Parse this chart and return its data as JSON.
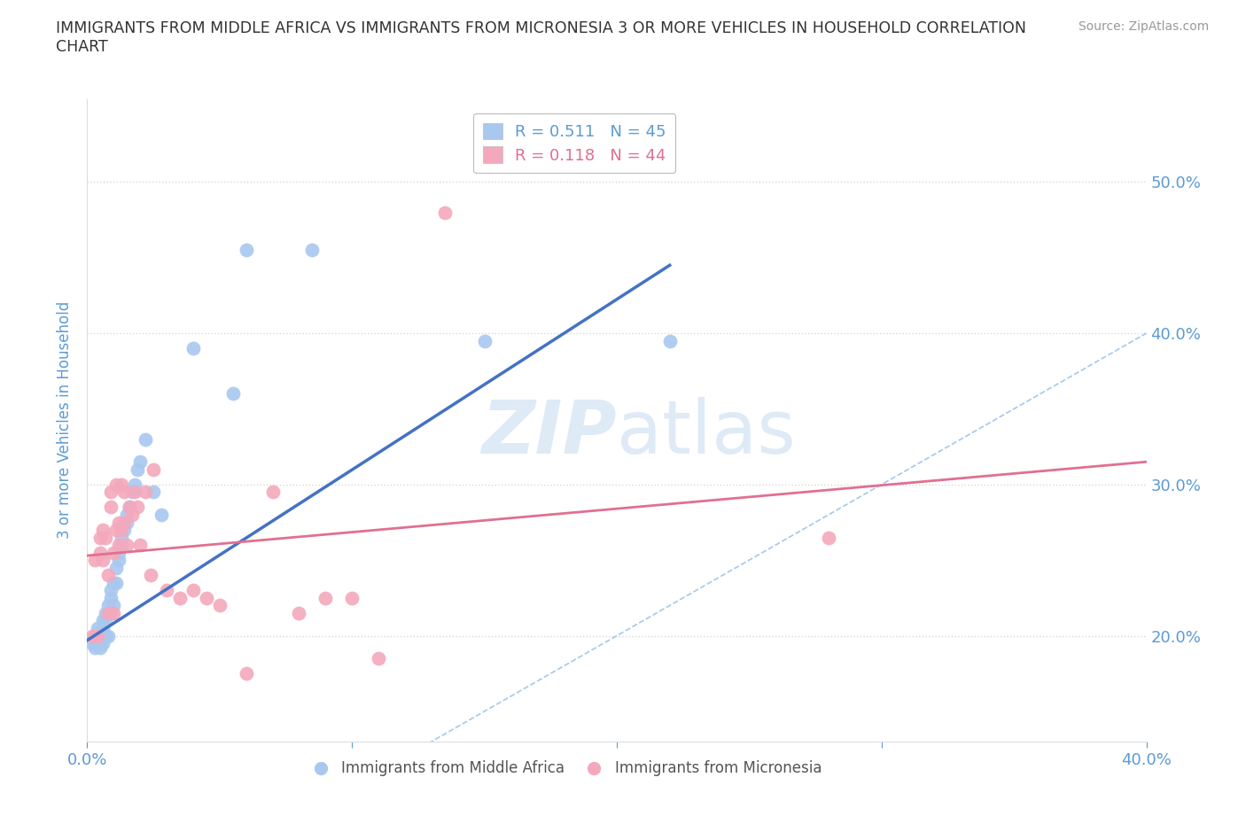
{
  "title": "IMMIGRANTS FROM MIDDLE AFRICA VS IMMIGRANTS FROM MICRONESIA 3 OR MORE VEHICLES IN HOUSEHOLD CORRELATION\nCHART",
  "source_text": "Source: ZipAtlas.com",
  "ylabel": "3 or more Vehicles in Household",
  "xmin": 0.0,
  "xmax": 0.4,
  "ymin": 0.13,
  "ymax": 0.555,
  "R_blue": 0.511,
  "N_blue": 45,
  "R_pink": 0.118,
  "N_pink": 44,
  "color_blue": "#A8C8F0",
  "color_pink": "#F4A8BC",
  "trendline_blue": "#4472C4",
  "trendline_pink": "#E07090",
  "refline_color": "#7EB0E8",
  "axis_color": "#5B9BD5",
  "grid_color": "#CCCCCC",
  "watermark_color": "#C8DCF0",
  "blue_scatter_x": [
    0.002,
    0.003,
    0.003,
    0.004,
    0.004,
    0.005,
    0.005,
    0.005,
    0.006,
    0.006,
    0.006,
    0.007,
    0.007,
    0.007,
    0.008,
    0.008,
    0.008,
    0.009,
    0.009,
    0.009,
    0.01,
    0.01,
    0.011,
    0.011,
    0.012,
    0.012,
    0.013,
    0.013,
    0.014,
    0.015,
    0.015,
    0.016,
    0.017,
    0.018,
    0.019,
    0.02,
    0.022,
    0.025,
    0.028,
    0.04,
    0.055,
    0.06,
    0.085,
    0.15,
    0.22
  ],
  "blue_scatter_y": [
    0.195,
    0.192,
    0.2,
    0.195,
    0.205,
    0.192,
    0.198,
    0.2,
    0.195,
    0.205,
    0.21,
    0.2,
    0.21,
    0.215,
    0.2,
    0.215,
    0.22,
    0.215,
    0.225,
    0.23,
    0.22,
    0.235,
    0.235,
    0.245,
    0.25,
    0.255,
    0.26,
    0.265,
    0.27,
    0.275,
    0.28,
    0.285,
    0.295,
    0.3,
    0.31,
    0.315,
    0.33,
    0.295,
    0.28,
    0.39,
    0.36,
    0.455,
    0.455,
    0.395,
    0.395
  ],
  "pink_scatter_x": [
    0.002,
    0.003,
    0.004,
    0.005,
    0.005,
    0.006,
    0.006,
    0.007,
    0.008,
    0.008,
    0.009,
    0.009,
    0.01,
    0.01,
    0.011,
    0.011,
    0.012,
    0.012,
    0.013,
    0.013,
    0.014,
    0.014,
    0.015,
    0.016,
    0.017,
    0.018,
    0.019,
    0.02,
    0.022,
    0.024,
    0.025,
    0.03,
    0.035,
    0.04,
    0.045,
    0.05,
    0.06,
    0.07,
    0.08,
    0.09,
    0.1,
    0.11,
    0.135,
    0.28
  ],
  "pink_scatter_y": [
    0.2,
    0.25,
    0.2,
    0.255,
    0.265,
    0.25,
    0.27,
    0.265,
    0.215,
    0.24,
    0.285,
    0.295,
    0.215,
    0.255,
    0.27,
    0.3,
    0.26,
    0.275,
    0.3,
    0.27,
    0.275,
    0.295,
    0.26,
    0.285,
    0.28,
    0.295,
    0.285,
    0.26,
    0.295,
    0.24,
    0.31,
    0.23,
    0.225,
    0.23,
    0.225,
    0.22,
    0.175,
    0.295,
    0.215,
    0.225,
    0.225,
    0.185,
    0.48,
    0.265
  ],
  "blue_trend_x0": 0.0,
  "blue_trend_y0": 0.197,
  "blue_trend_x1": 0.22,
  "blue_trend_y1": 0.445,
  "pink_trend_x0": 0.0,
  "pink_trend_y0": 0.253,
  "pink_trend_x1": 0.4,
  "pink_trend_y1": 0.315
}
